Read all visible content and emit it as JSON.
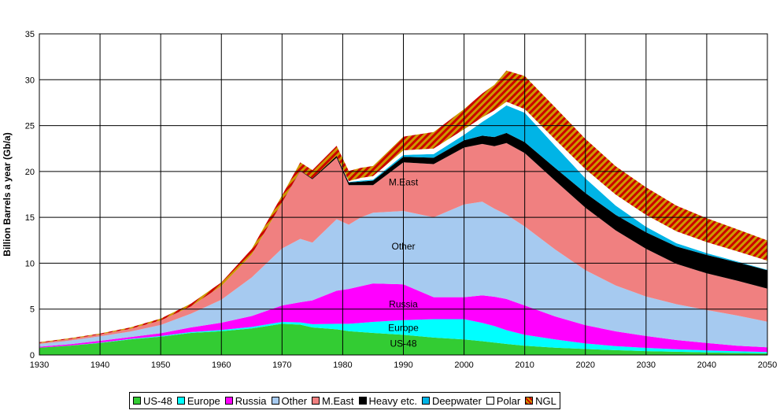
{
  "chart_data": {
    "type": "area",
    "stacked": true,
    "title": "",
    "xlabel": "",
    "ylabel": "Billion Barrels a year (Gb/a)",
    "xlim": [
      1930,
      2050
    ],
    "ylim": [
      0,
      35
    ],
    "x_ticks": [
      1930,
      1940,
      1950,
      1960,
      1970,
      1980,
      1990,
      2000,
      2010,
      2020,
      2030,
      2040,
      2050
    ],
    "y_ticks": [
      0,
      5,
      10,
      15,
      20,
      25,
      30,
      35
    ],
    "grid": true,
    "legend_position": "bottom",
    "x": [
      1930,
      1935,
      1940,
      1945,
      1950,
      1955,
      1960,
      1965,
      1970,
      1973,
      1975,
      1979,
      1981,
      1983,
      1985,
      1990,
      1995,
      2000,
      2003,
      2005,
      2007,
      2010,
      2015,
      2020,
      2025,
      2030,
      2035,
      2040,
      2045,
      2050
    ],
    "series": [
      {
        "name": "US-48",
        "color": "#33cc33",
        "pattern": "solid",
        "values": [
          0.8,
          1.0,
          1.3,
          1.7,
          2.0,
          2.4,
          2.6,
          2.9,
          3.4,
          3.3,
          3.0,
          2.8,
          2.6,
          2.5,
          2.4,
          2.2,
          1.9,
          1.7,
          1.5,
          1.35,
          1.2,
          1.0,
          0.8,
          0.65,
          0.52,
          0.42,
          0.35,
          0.28,
          0.22,
          0.18
        ]
      },
      {
        "name": "Europe",
        "color": "#00ffff",
        "pattern": "solid",
        "values": [
          0.0,
          0.02,
          0.04,
          0.05,
          0.07,
          0.1,
          0.12,
          0.15,
          0.2,
          0.25,
          0.35,
          0.6,
          0.8,
          1.0,
          1.2,
          1.6,
          2.0,
          2.2,
          2.0,
          1.8,
          1.5,
          1.2,
          0.9,
          0.6,
          0.45,
          0.35,
          0.28,
          0.22,
          0.18,
          0.15
        ]
      },
      {
        "name": "Russia",
        "color": "#ff00ff",
        "pattern": "solid",
        "values": [
          0.1,
          0.15,
          0.2,
          0.2,
          0.3,
          0.5,
          0.8,
          1.2,
          1.8,
          2.2,
          2.6,
          3.6,
          3.8,
          4.0,
          4.2,
          3.9,
          2.4,
          2.4,
          3.0,
          3.2,
          3.4,
          3.2,
          2.5,
          2.0,
          1.6,
          1.3,
          1.0,
          0.8,
          0.6,
          0.5
        ]
      },
      {
        "name": "Other",
        "color": "#a6caf0",
        "pattern": "solid",
        "values": [
          0.3,
          0.4,
          0.5,
          0.6,
          0.9,
          1.5,
          2.5,
          4.2,
          6.2,
          6.9,
          6.3,
          7.8,
          7.0,
          7.5,
          7.7,
          8.0,
          8.7,
          10.1,
          10.2,
          9.6,
          9.2,
          8.6,
          7.3,
          6.0,
          5.0,
          4.3,
          3.9,
          3.6,
          3.3,
          2.8
        ]
      },
      {
        "name": "M.East",
        "color": "#f08080",
        "pattern": "solid",
        "values": [
          0.1,
          0.15,
          0.2,
          0.3,
          0.5,
          0.8,
          1.5,
          2.5,
          5.0,
          7.4,
          6.9,
          6.7,
          4.3,
          3.5,
          3.0,
          5.3,
          5.8,
          6.2,
          6.3,
          6.8,
          7.8,
          8.0,
          7.5,
          6.8,
          6.0,
          5.2,
          4.4,
          4.0,
          3.8,
          3.6
        ]
      },
      {
        "name": "Heavy etc.",
        "color": "#000000",
        "pattern": "solid",
        "values": [
          0.0,
          0.0,
          0.0,
          0.0,
          0.0,
          0.0,
          0.0,
          0.0,
          0.0,
          0.05,
          0.1,
          0.2,
          0.3,
          0.4,
          0.5,
          0.6,
          0.7,
          0.8,
          0.9,
          1.0,
          1.1,
          1.2,
          1.4,
          1.6,
          1.7,
          1.8,
          1.9,
          2.0,
          2.0,
          2.0
        ]
      },
      {
        "name": "Deepwater",
        "color": "#00b4e6",
        "pattern": "solid",
        "values": [
          0.0,
          0.0,
          0.0,
          0.0,
          0.0,
          0.0,
          0.0,
          0.0,
          0.0,
          0.0,
          0.0,
          0.0,
          0.05,
          0.1,
          0.1,
          0.2,
          0.4,
          0.6,
          1.5,
          2.5,
          3.0,
          3.2,
          2.4,
          1.6,
          1.0,
          0.6,
          0.35,
          0.2,
          0.1,
          0.05
        ]
      },
      {
        "name": "Polar",
        "color": "#ffffff",
        "pattern": "solid",
        "values": [
          0.0,
          0.0,
          0.0,
          0.0,
          0.0,
          0.0,
          0.0,
          0.0,
          0.0,
          0.0,
          0.0,
          0.0,
          0.1,
          0.3,
          0.4,
          0.5,
          0.6,
          0.6,
          0.5,
          0.4,
          0.4,
          0.4,
          0.7,
          1.0,
          1.2,
          1.3,
          1.3,
          1.2,
          1.1,
          1.0
        ]
      },
      {
        "name": "NGL",
        "color": "#cc9900",
        "pattern": "hatch",
        "values": [
          0.1,
          0.1,
          0.1,
          0.15,
          0.2,
          0.3,
          0.4,
          0.6,
          0.8,
          0.9,
          0.9,
          1.1,
          1.1,
          1.1,
          1.1,
          1.5,
          1.8,
          2.2,
          2.6,
          2.8,
          3.4,
          3.6,
          3.5,
          3.3,
          3.1,
          3.0,
          2.8,
          2.6,
          2.4,
          2.2
        ]
      }
    ],
    "annotations": [
      {
        "text": "M.East",
        "x": 1990,
        "y": 18.5
      },
      {
        "text": "Other",
        "x": 1990,
        "y": 11.5
      },
      {
        "text": "Russia",
        "x": 1990,
        "y": 5.2
      },
      {
        "text": "Europe",
        "x": 1990,
        "y": 2.6
      },
      {
        "text": "US-48",
        "x": 1990,
        "y": 0.9
      }
    ]
  }
}
